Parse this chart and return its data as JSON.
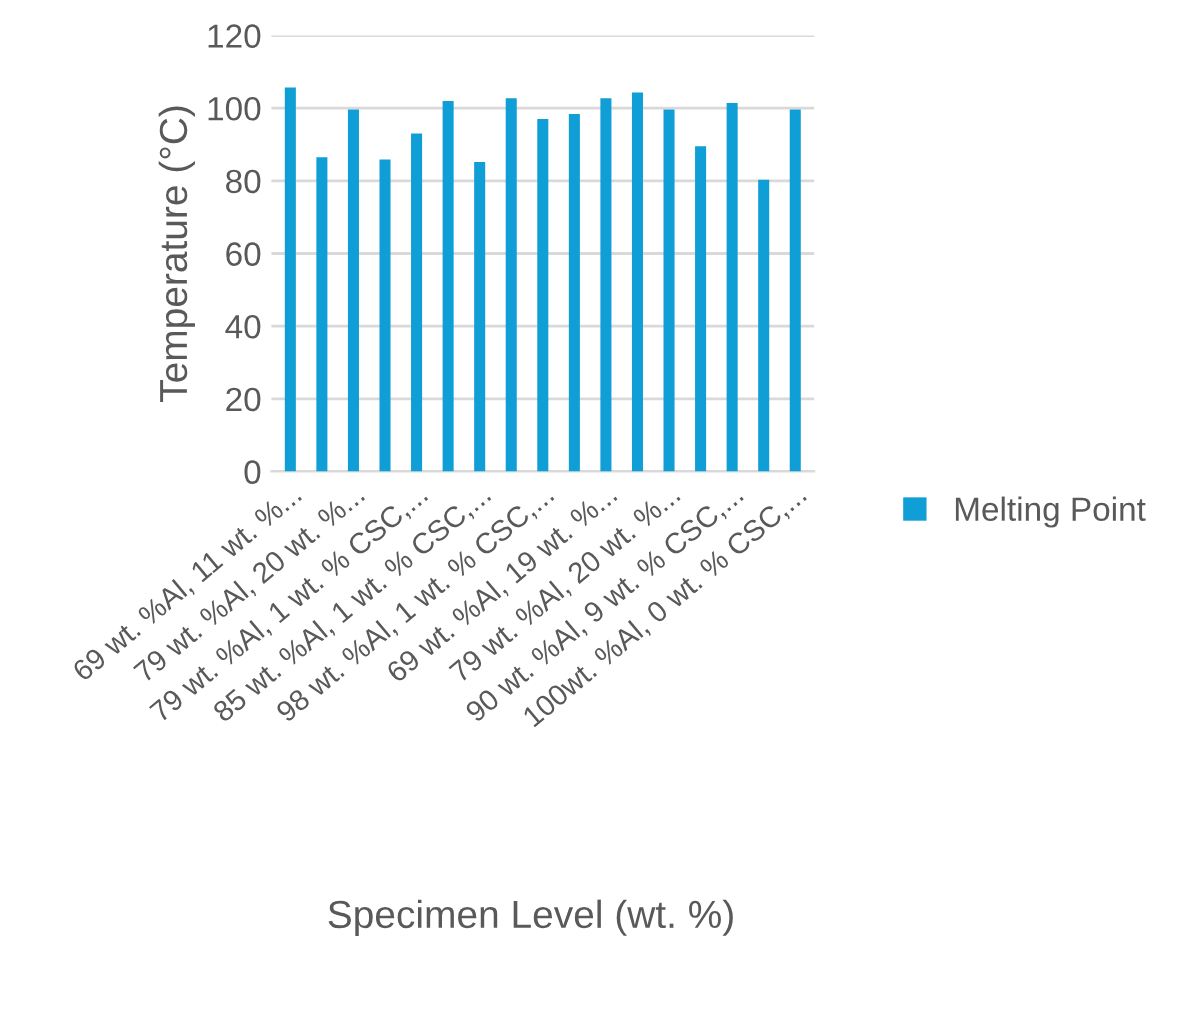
{
  "chart_data": {
    "type": "bar",
    "categories": [
      "69 wt. %Al, 11 wt. %...",
      null,
      "79 wt. %Al, 20 wt. %...",
      null,
      "79 wt. %Al, 1 wt. % CSC,...",
      null,
      "85 wt. %Al, 1 wt. % CSC,...",
      null,
      "98 wt. %Al, 1 wt. % CSC,...",
      null,
      "69 wt. %Al, 19 wt. %...",
      null,
      "79 wt. %Al, 20 wt. %...",
      null,
      "90 wt. %Al, 9 wt. % CSC,...",
      null,
      "100wt. %Al, 0 wt. % CSC,..."
    ],
    "series": [
      {
        "name": "Melting Point",
        "color": "#0f9ed5",
        "values": [
          105.7,
          86.5,
          99.6,
          85.9,
          93,
          102,
          85.2,
          102.7,
          97,
          98.4,
          102.7,
          104.3,
          99.6,
          89.5,
          101.4,
          80.3,
          99.6
        ]
      }
    ],
    "xlabel": "Specimen Level (wt. %)",
    "ylabel": "Temperature (°C)",
    "ylim": [
      0,
      120
    ],
    "yticks": [
      0,
      20,
      40,
      60,
      80,
      100,
      120
    ],
    "grid": "y",
    "legend": "right"
  }
}
